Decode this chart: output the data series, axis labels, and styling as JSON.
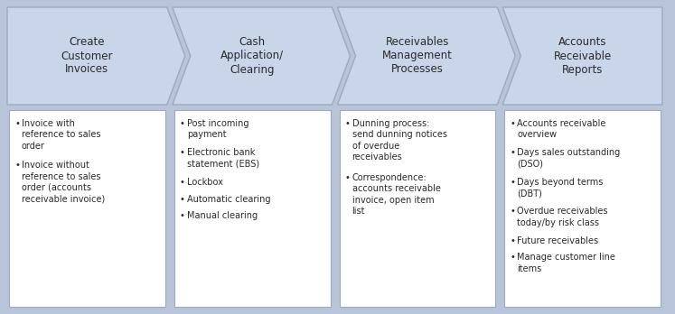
{
  "background_color": "#b8c5d9",
  "arrow_fill_color": "#c9d5e8",
  "arrow_edge_color": "#9aaac0",
  "box_fill_color": "#ffffff",
  "box_edge_color": "#9aaac0",
  "text_color": "#2a2a2a",
  "headers": [
    "Create\nCustomer\nInvoices",
    "Cash\nApplication/\nClearing",
    "Receivables\nManagement\nProcesses",
    "Accounts\nReceivable\nReports"
  ],
  "bullets": [
    [
      "Invoice with\nreference to sales\norder",
      "Invoice without\nreference to sales\norder (accounts\nreceivable invoice)"
    ],
    [
      "Post incoming\npayment",
      "Electronic bank\nstatement (EBS)",
      "Lockbox",
      "Automatic clearing",
      "Manual clearing"
    ],
    [
      "Dunning process:\nsend dunning notices\nof overdue\nreceivables",
      "Correspondence:\naccounts receivable\ninvoice, open item\nlist"
    ],
    [
      "Accounts receivable\noverview",
      "Days sales outstanding\n(DSO)",
      "Days beyond terms\n(DBT)",
      "Overdue receivables\ntoday/by risk class",
      "Future receivables",
      "Manage customer line\nitems"
    ]
  ],
  "fig_width": 7.47,
  "fig_height": 3.48,
  "dpi": 100
}
